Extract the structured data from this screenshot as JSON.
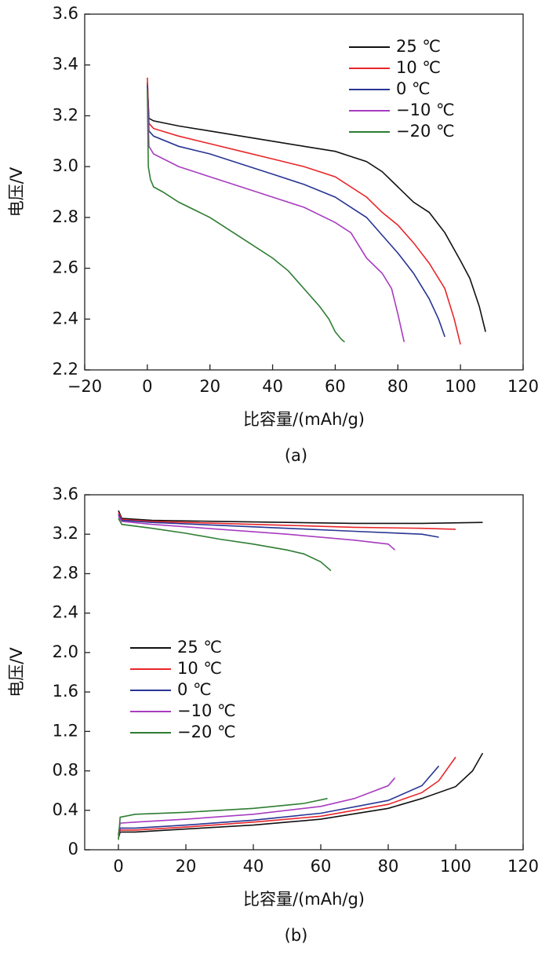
{
  "chart_data": [
    {
      "type": "line",
      "x_label": "比容量/(mAh/g)",
      "y_label": "电压/V",
      "caption": "(a)",
      "xlim": [
        -20,
        120
      ],
      "ylim": [
        2.2,
        3.6
      ],
      "xticks": [
        {
          "value": -20,
          "label": "−20"
        },
        0,
        20,
        40,
        60,
        80,
        100,
        120
      ],
      "yticks": [
        2.2,
        2.4,
        2.6,
        2.8,
        {
          "value": 3,
          "label": "3.0"
        },
        3.2,
        3.4,
        3.6
      ],
      "legend_position": "upper right",
      "series": [
        {
          "name": "25 ℃",
          "color": "#111111",
          "curves": [
            {
              "x": [
                0,
                0.5,
                2,
                10,
                20,
                30,
                40,
                50,
                60,
                65,
                70,
                75,
                80,
                85,
                90,
                95,
                100,
                103,
                106,
                108
              ],
              "values": [
                3.33,
                3.19,
                3.18,
                3.16,
                3.14,
                3.12,
                3.1,
                3.08,
                3.06,
                3.04,
                3.02,
                2.98,
                2.92,
                2.86,
                2.82,
                2.74,
                2.63,
                2.56,
                2.45,
                2.35
              ]
            }
          ]
        },
        {
          "name": "10 ℃",
          "color": "#e8262a",
          "curves": [
            {
              "x": [
                0,
                0.5,
                2,
                10,
                20,
                30,
                40,
                50,
                60,
                70,
                75,
                80,
                85,
                90,
                95,
                98,
                100
              ],
              "values": [
                3.35,
                3.17,
                3.15,
                3.12,
                3.09,
                3.06,
                3.03,
                3.0,
                2.96,
                2.88,
                2.82,
                2.77,
                2.7,
                2.62,
                2.52,
                2.4,
                2.3
              ]
            }
          ]
        },
        {
          "name": "0 ℃",
          "color": "#283593",
          "curves": [
            {
              "x": [
                0,
                0.5,
                2,
                10,
                20,
                30,
                40,
                50,
                60,
                70,
                75,
                80,
                85,
                90,
                93,
                95
              ],
              "values": [
                3.32,
                3.14,
                3.12,
                3.08,
                3.05,
                3.01,
                2.97,
                2.93,
                2.88,
                2.8,
                2.73,
                2.66,
                2.58,
                2.48,
                2.4,
                2.33
              ]
            }
          ]
        },
        {
          "name": "−10 ℃",
          "color": "#a83cc0",
          "curves": [
            {
              "x": [
                0,
                0.5,
                2,
                10,
                20,
                30,
                40,
                50,
                60,
                65,
                70,
                75,
                78,
                80,
                82
              ],
              "values": [
                3.3,
                3.08,
                3.05,
                3.0,
                2.96,
                2.92,
                2.88,
                2.84,
                2.78,
                2.74,
                2.64,
                2.58,
                2.52,
                2.42,
                2.31
              ]
            }
          ]
        },
        {
          "name": "−20 ℃",
          "color": "#2e7d32",
          "curves": [
            {
              "x": [
                0,
                0.3,
                1,
                2,
                5,
                10,
                20,
                30,
                40,
                45,
                50,
                55,
                58,
                60,
                62,
                63
              ],
              "values": [
                3.3,
                3.0,
                2.95,
                2.92,
                2.9,
                2.86,
                2.8,
                2.72,
                2.64,
                2.59,
                2.52,
                2.45,
                2.4,
                2.35,
                2.32,
                2.31
              ]
            }
          ]
        }
      ]
    },
    {
      "type": "line",
      "x_label": "比容量/(mAh/g)",
      "y_label": "电压/V",
      "caption": "(b)",
      "xlim": [
        -10,
        120
      ],
      "ylim": [
        0,
        3.6
      ],
      "xticks": [
        0,
        20,
        40,
        60,
        80,
        100,
        120
      ],
      "yticks": [
        0,
        0.4,
        0.8,
        1.2,
        1.6,
        {
          "value": 2,
          "label": "2.0"
        },
        2.4,
        2.8,
        3.2,
        3.6
      ],
      "legend_position": "center left",
      "series": [
        {
          "name": "25 ℃",
          "color": "#111111",
          "curves": [
            {
              "x": [
                0,
                1,
                10,
                30,
                50,
                70,
                90,
                108
              ],
              "values": [
                3.44,
                3.36,
                3.34,
                3.33,
                3.32,
                3.31,
                3.31,
                3.32
              ]
            },
            {
              "x": [
                0,
                0.5,
                5,
                20,
                40,
                60,
                80,
                90,
                100,
                105,
                108
              ],
              "values": [
                0.12,
                0.18,
                0.18,
                0.21,
                0.25,
                0.31,
                0.42,
                0.52,
                0.64,
                0.8,
                0.98
              ]
            }
          ]
        },
        {
          "name": "10 ℃",
          "color": "#e8262a",
          "curves": [
            {
              "x": [
                0,
                1,
                10,
                30,
                50,
                70,
                90,
                100
              ],
              "values": [
                3.42,
                3.35,
                3.33,
                3.31,
                3.29,
                3.27,
                3.26,
                3.25
              ]
            },
            {
              "x": [
                0,
                0.5,
                5,
                20,
                40,
                60,
                80,
                90,
                95,
                100
              ],
              "values": [
                0.14,
                0.2,
                0.2,
                0.23,
                0.28,
                0.34,
                0.46,
                0.58,
                0.7,
                0.94
              ]
            }
          ]
        },
        {
          "name": "0 ℃",
          "color": "#283593",
          "curves": [
            {
              "x": [
                0,
                1,
                10,
                30,
                50,
                70,
                90,
                95
              ],
              "values": [
                3.4,
                3.34,
                3.32,
                3.29,
                3.26,
                3.23,
                3.2,
                3.17
              ]
            },
            {
              "x": [
                0,
                0.5,
                5,
                20,
                40,
                60,
                80,
                90,
                95
              ],
              "values": [
                0.15,
                0.22,
                0.22,
                0.25,
                0.3,
                0.37,
                0.5,
                0.65,
                0.85
              ]
            }
          ]
        },
        {
          "name": "−10 ℃",
          "color": "#a83cc0",
          "curves": [
            {
              "x": [
                0,
                1,
                10,
                30,
                50,
                70,
                80,
                82
              ],
              "values": [
                3.38,
                3.33,
                3.3,
                3.25,
                3.2,
                3.14,
                3.1,
                3.04
              ]
            },
            {
              "x": [
                0,
                0.5,
                5,
                20,
                40,
                60,
                70,
                80,
                82
              ],
              "values": [
                0.16,
                0.27,
                0.28,
                0.31,
                0.36,
                0.44,
                0.52,
                0.65,
                0.73
              ]
            }
          ]
        },
        {
          "name": "−20 ℃",
          "color": "#2e7d32",
          "curves": [
            {
              "x": [
                0,
                1,
                10,
                20,
                30,
                40,
                50,
                55,
                60,
                63
              ],
              "values": [
                3.36,
                3.3,
                3.26,
                3.21,
                3.15,
                3.1,
                3.04,
                3.0,
                2.92,
                2.83
              ]
            },
            {
              "x": [
                0,
                0.5,
                5,
                20,
                40,
                55,
                62
              ],
              "values": [
                0.1,
                0.33,
                0.36,
                0.38,
                0.42,
                0.47,
                0.52
              ]
            }
          ]
        }
      ]
    }
  ]
}
